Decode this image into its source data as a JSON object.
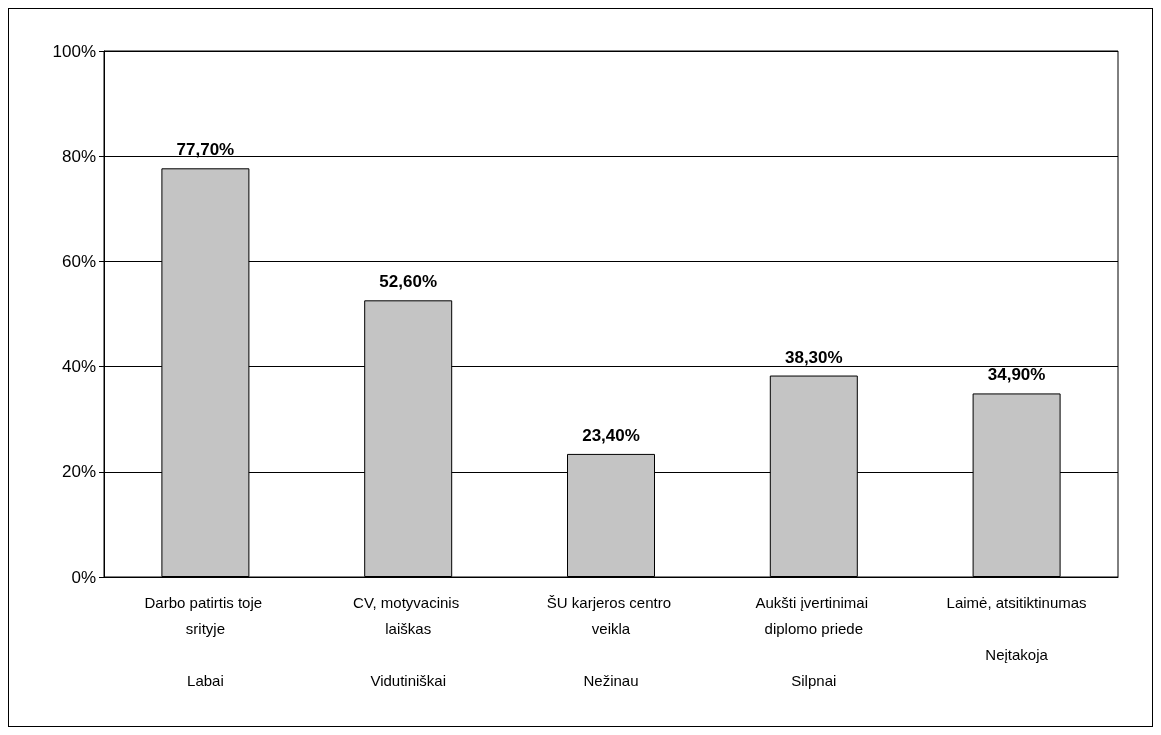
{
  "chart_data": {
    "type": "bar",
    "categories": [
      "Darbo patirtis toje srityje\n\nLabai",
      "CV, motyvacinis laiškas\n\nVidutiniškai",
      "ŠU karjeros centro veikla\n\nNežinau",
      "Aukšti įvertinimai diplomo priede\n\nSilpnai",
      "Laimė, atsitiktinumas\n\nNeįtakoja"
    ],
    "values": [
      77.7,
      52.6,
      23.4,
      38.3,
      34.9
    ],
    "value_labels": [
      "77,70%",
      "52,60%",
      "23,40%",
      "38,30%",
      "34,90%"
    ],
    "color": "#c4c4c4",
    "ylim": [
      0,
      100
    ],
    "yticks": [
      {
        "value": 0,
        "label": "0%"
      },
      {
        "value": 20,
        "label": "20%"
      },
      {
        "value": 40,
        "label": "40%"
      },
      {
        "value": 60,
        "label": "60%"
      },
      {
        "value": 80,
        "label": "80%"
      },
      {
        "value": 100,
        "label": "100%"
      }
    ],
    "grid": "y"
  }
}
